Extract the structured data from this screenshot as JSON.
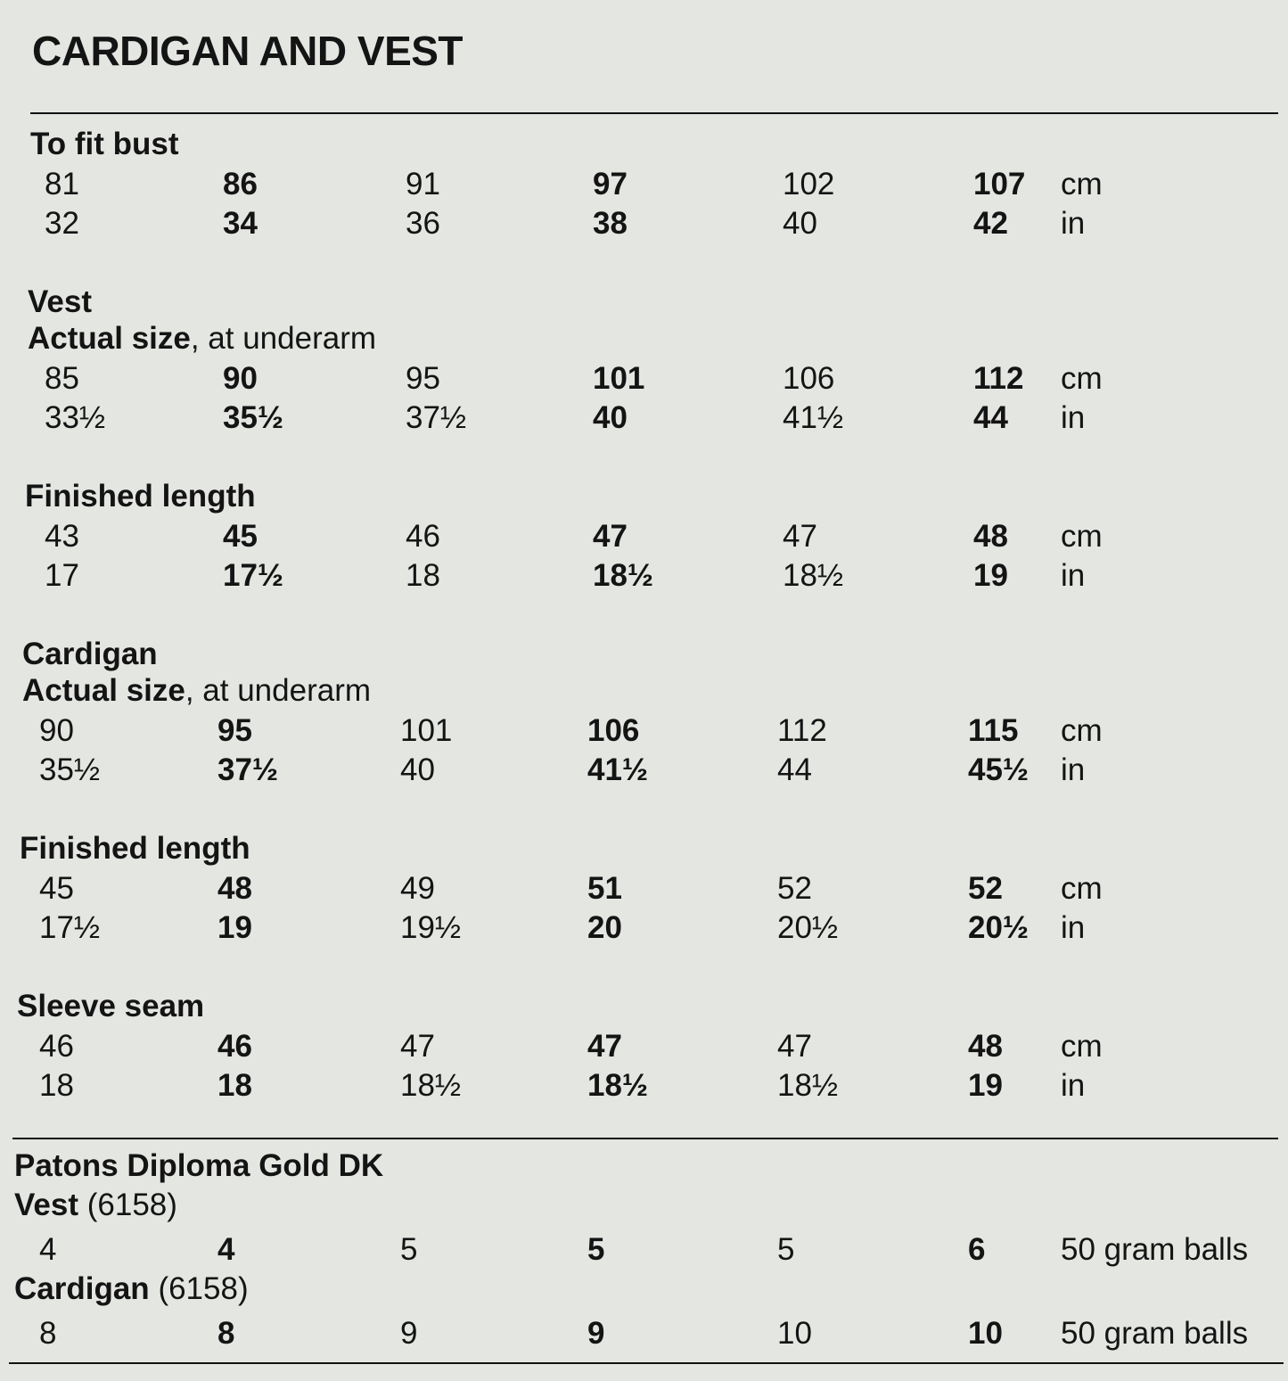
{
  "title": "CARDIGAN AND VEST",
  "blocks": [
    {
      "lines": [
        {
          "bold": "To fit bust"
        }
      ],
      "rows": [
        {
          "values": [
            "81",
            "86",
            "91",
            "97",
            "102",
            "107"
          ],
          "unit": "cm"
        },
        {
          "values": [
            "32",
            "34",
            "36",
            "38",
            "40",
            "42"
          ],
          "unit": "in"
        }
      ]
    },
    {
      "lines": [
        {
          "bold": "Vest"
        },
        {
          "bold": "Actual size",
          "rest": ", at underarm"
        }
      ],
      "rows": [
        {
          "values": [
            "85",
            "90",
            "95",
            "101",
            "106",
            "112"
          ],
          "unit": "cm"
        },
        {
          "values": [
            "33½",
            "35½",
            "37½",
            "40",
            "41½",
            "44"
          ],
          "unit": "in"
        }
      ]
    },
    {
      "lines": [
        {
          "bold": "Finished length"
        }
      ],
      "rows": [
        {
          "values": [
            "43",
            "45",
            "46",
            "47",
            "47",
            "48"
          ],
          "unit": "cm"
        },
        {
          "values": [
            "17",
            "17½",
            "18",
            "18½",
            "18½",
            "19"
          ],
          "unit": "in"
        }
      ]
    },
    {
      "lines": [
        {
          "bold": "Cardigan"
        },
        {
          "bold": "Actual size",
          "rest": ", at underarm"
        }
      ],
      "rows": [
        {
          "values": [
            "90",
            "95",
            "101",
            "106",
            "112",
            "115"
          ],
          "unit": "cm"
        },
        {
          "values": [
            "35½",
            "37½",
            "40",
            "41½",
            "44",
            "45½"
          ],
          "unit": "in"
        }
      ]
    },
    {
      "lines": [
        {
          "bold": "Finished length"
        }
      ],
      "rows": [
        {
          "values": [
            "45",
            "48",
            "49",
            "51",
            "52",
            "52"
          ],
          "unit": "cm"
        },
        {
          "values": [
            "17½",
            "19",
            "19½",
            "20",
            "20½",
            "20½"
          ],
          "unit": "in"
        }
      ]
    },
    {
      "lines": [
        {
          "bold": "Sleeve seam"
        }
      ],
      "rows": [
        {
          "values": [
            "46",
            "46",
            "47",
            "47",
            "47",
            "48"
          ],
          "unit": "cm"
        },
        {
          "values": [
            "18",
            "18",
            "18½",
            "18½",
            "18½",
            "19"
          ],
          "unit": "in"
        }
      ]
    }
  ],
  "yarn": {
    "heading": "Patons Diploma Gold DK",
    "items": [
      {
        "name": "Vest",
        "code": "(6158)",
        "values": [
          "4",
          "4",
          "5",
          "5",
          "5",
          "6"
        ],
        "unit": "50 gram balls"
      },
      {
        "name": "Cardigan",
        "code": "(6158)",
        "values": [
          "8",
          "8",
          "9",
          "9",
          "10",
          "10"
        ],
        "unit": "50 gram balls"
      }
    ]
  }
}
